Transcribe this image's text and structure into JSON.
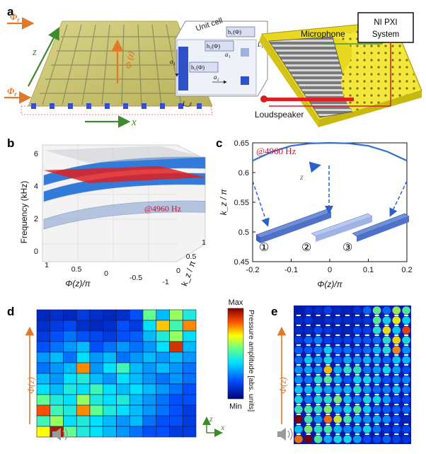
{
  "panels": {
    "a": "a",
    "b": "b",
    "c": "c",
    "d": "d",
    "e": "e"
  },
  "panel_a": {
    "phi_left_1": "Φ",
    "phi_left_1_sub": "r",
    "phi_left_2": "Φ",
    "phi_left_2_sub": "r",
    "z_axis": "z",
    "x_axis": "x",
    "phi_z": "Φ (z)",
    "unit_cell_title": "Unit cell",
    "h1": "h₁(Φ)",
    "h2": "h₂(Φ)",
    "h3": "h₁(Φ)",
    "hbottom": "h₁(Φ)",
    "a1": "a₁",
    "a2": "a₂",
    "a1b": "a₁",
    "L1": "L₁",
    "Lz": "L_z",
    "microphone": "Microphone",
    "ni_system": [
      "NI PXI",
      "System"
    ],
    "loudspeaker": "Loudspeaker"
  },
  "panel_c_extra": {
    "z_label": "z",
    "markers": [
      "①",
      "②",
      "③"
    ]
  },
  "panel_d": {
    "axis_label": "Φ(z)",
    "axis_z": "z",
    "axis_x": "x",
    "colorbar_max": "Max",
    "colorbar_min": "Min",
    "colorbar_label": "Pressure amplitude [abs. units]",
    "icon": "speaker-icon"
  },
  "panel_e": {
    "axis_label": "Φ(z)",
    "icon": "speaker-icon"
  },
  "chart_data": [
    {
      "type": "area",
      "panel": "b",
      "title": "",
      "annotation": "@4960 Hz",
      "xlabel": "Φ(z)/π",
      "ylabel": "k_z / π",
      "zlabel": "Frequency (kHz)",
      "xticks": [
        "1",
        "0.5",
        "0",
        "-0.5",
        "-1"
      ],
      "yticks": [
        "0",
        "0.5",
        "1"
      ],
      "zticks": [
        "0",
        "2",
        "4",
        "6"
      ],
      "zlim": [
        0,
        6
      ],
      "slice_frequency_khz": 4.96,
      "series": [
        {
          "values": [
            2.3,
            2.6,
            2.9
          ]
        },
        {
          "values": [
            4.0,
            4.3,
            4.6
          ]
        },
        {
          "values": [
            5.0,
            5.3,
            5.6
          ]
        }
      ]
    },
    {
      "type": "line",
      "panel": "c",
      "title": "@4960 Hz",
      "xlabel": "Φ(z)/π",
      "ylabel": "k_z / π",
      "xlim": [
        -0.2,
        0.2
      ],
      "ylim": [
        0.45,
        0.65
      ],
      "xticks": [
        "-0.2",
        "-0.1",
        "0",
        "0.1",
        "0.2"
      ],
      "yticks": [
        "0.45",
        "0.5",
        "0.55",
        "0.6",
        "0.65"
      ],
      "x": [
        -0.2,
        -0.15,
        -0.1,
        -0.05,
        0,
        0.05,
        0.1,
        0.15,
        0.2
      ],
      "y": [
        0.62,
        0.635,
        0.645,
        0.649,
        0.65,
        0.649,
        0.645,
        0.635,
        0.62
      ]
    },
    {
      "type": "heatmap",
      "panel": "d",
      "rows": 12,
      "cols": 12,
      "scale_min": "Min",
      "scale_max": "Max",
      "values": [
        [
          0.1,
          0.12,
          0.1,
          0.15,
          0.12,
          0.1,
          0.12,
          0.2,
          0.55,
          0.35,
          0.6,
          0.45
        ],
        [
          0.12,
          0.15,
          0.18,
          0.12,
          0.1,
          0.12,
          0.2,
          0.15,
          0.4,
          0.75,
          0.5,
          0.8
        ],
        [
          0.15,
          0.2,
          0.25,
          0.2,
          0.18,
          0.15,
          0.2,
          0.22,
          0.35,
          0.45,
          0.6,
          0.4
        ],
        [
          0.2,
          0.25,
          0.3,
          0.35,
          0.2,
          0.25,
          0.3,
          0.25,
          0.3,
          0.4,
          0.9,
          0.35
        ],
        [
          0.3,
          0.35,
          0.25,
          0.4,
          0.3,
          0.35,
          0.25,
          0.3,
          0.35,
          0.3,
          0.35,
          0.3
        ],
        [
          0.25,
          0.3,
          0.35,
          0.8,
          0.3,
          0.4,
          0.5,
          0.35,
          0.3,
          0.35,
          0.3,
          0.25
        ],
        [
          0.35,
          0.3,
          0.4,
          0.45,
          0.35,
          0.3,
          0.4,
          0.35,
          0.3,
          0.25,
          0.3,
          0.25
        ],
        [
          0.4,
          0.35,
          0.45,
          0.4,
          0.5,
          0.4,
          0.35,
          0.4,
          0.35,
          0.3,
          0.25,
          0.2
        ],
        [
          0.55,
          0.45,
          0.4,
          0.6,
          0.45,
          0.4,
          0.45,
          0.35,
          0.3,
          0.25,
          0.2,
          0.2
        ],
        [
          0.85,
          0.5,
          0.45,
          0.8,
          0.55,
          0.45,
          0.4,
          0.35,
          0.3,
          0.25,
          0.2,
          0.15
        ],
        [
          0.5,
          0.6,
          0.4,
          0.45,
          0.4,
          0.35,
          0.3,
          0.35,
          0.25,
          0.2,
          0.2,
          0.15
        ],
        [
          0.7,
          0.95,
          0.55,
          0.45,
          0.4,
          0.35,
          0.3,
          0.25,
          0.2,
          0.2,
          0.15,
          0.15
        ]
      ]
    }
  ],
  "colors": {
    "membrane": "#c9c36a",
    "blue_surface": "#1e6fd8",
    "red_slice": "#e02020",
    "grey_surface": "#b8bcc4",
    "arc": "#2f6fd0",
    "orange_arrow": "#e07a2a",
    "green_arrow": "#3f8a2a",
    "annotation_red": "#c8102e"
  }
}
